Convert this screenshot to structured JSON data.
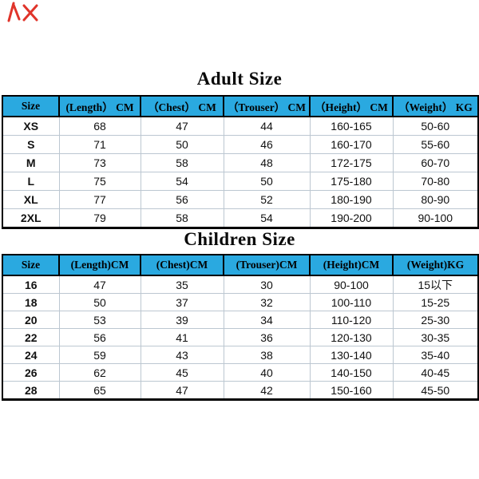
{
  "chart_data": [
    {
      "type": "table",
      "title": "Adult Size",
      "columns": [
        "Size",
        "(Length） CM",
        "（Chest） CM",
        "（Trouser） CM",
        "（Height） CM",
        "（Weight） KG"
      ],
      "rows": [
        [
          "XS",
          "68",
          "47",
          "44",
          "160-165",
          "50-60"
        ],
        [
          "S",
          "71",
          "50",
          "46",
          "160-170",
          "55-60"
        ],
        [
          "M",
          "73",
          "58",
          "48",
          "172-175",
          "60-70"
        ],
        [
          "L",
          "75",
          "54",
          "50",
          "175-180",
          "70-80"
        ],
        [
          "XL",
          "77",
          "56",
          "52",
          "180-190",
          "80-90"
        ],
        [
          "2XL",
          "79",
          "58",
          "54",
          "190-200",
          "90-100"
        ]
      ]
    },
    {
      "type": "table",
      "title": "Children Size",
      "columns": [
        "Size",
        "(Length)CM",
        "(Chest)CM",
        "(Trouser)CM",
        "(Height)CM",
        "(Weight)KG"
      ],
      "rows": [
        [
          "16",
          "47",
          "35",
          "30",
          "90-100",
          "15以下"
        ],
        [
          "18",
          "50",
          "37",
          "32",
          "100-110",
          "15-25"
        ],
        [
          "20",
          "53",
          "39",
          "34",
          "110-120",
          "25-30"
        ],
        [
          "22",
          "56",
          "41",
          "36",
          "120-130",
          "30-35"
        ],
        [
          "24",
          "59",
          "43",
          "38",
          "130-140",
          "35-40"
        ],
        [
          "26",
          "62",
          "45",
          "40",
          "140-150",
          "40-45"
        ],
        [
          "28",
          "65",
          "47",
          "42",
          "150-160",
          "45-50"
        ]
      ]
    }
  ],
  "decor": {
    "red_scribble": "red-pen-marks-top-left"
  },
  "colors": {
    "page_bg": "#ffffff",
    "header_bg": "#2aa9e0",
    "table_border": "#000000",
    "grid_line": "#bcc7d1",
    "text": "#000000",
    "scribble_red": "#e0342a"
  }
}
